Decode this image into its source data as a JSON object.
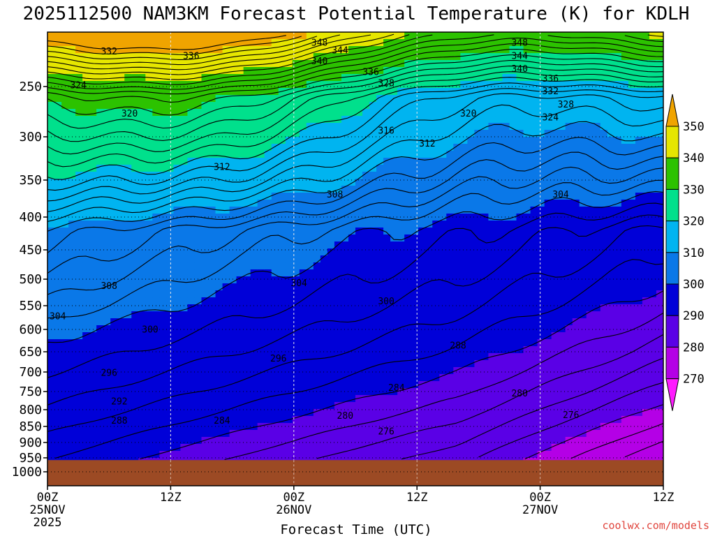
{
  "chart_data": {
    "type": "heatmap",
    "title": "2025112500 NAM3KM Forecast Potential Temperature (K) for KDLH",
    "xlabel": "Forecast Time (UTC)",
    "ylabel": "",
    "x_ticks": [
      {
        "label": "00Z",
        "sub1": "25NOV",
        "sub2": "2025",
        "hour": 0
      },
      {
        "label": "12Z",
        "sub1": "",
        "sub2": "",
        "hour": 12
      },
      {
        "label": "00Z",
        "sub1": "26NOV",
        "sub2": "",
        "hour": 24
      },
      {
        "label": "12Z",
        "sub1": "",
        "sub2": "",
        "hour": 36
      },
      {
        "label": "00Z",
        "sub1": "27NOV",
        "sub2": "",
        "hour": 48
      },
      {
        "label": "12Z",
        "sub1": "",
        "sub2": "",
        "hour": 60
      }
    ],
    "xlim_hours": [
      0,
      60
    ],
    "y_ticks": [
      250,
      300,
      350,
      400,
      450,
      500,
      550,
      600,
      650,
      700,
      750,
      800,
      850,
      900,
      950,
      1000
    ],
    "ylim_hpa": [
      200,
      1050
    ],
    "surface_pressure_hpa": 958,
    "colorbar": {
      "labels": [
        "350",
        "340",
        "330",
        "320",
        "310",
        "300",
        "290",
        "280",
        "270"
      ],
      "bins": [
        {
          "from": 340,
          "to": 350,
          "color": "#e6e600"
        },
        {
          "from": 330,
          "to": 340,
          "color": "#2cc200"
        },
        {
          "from": 320,
          "to": 330,
          "color": "#00e08c"
        },
        {
          "from": 310,
          "to": 320,
          "color": "#00b4f0"
        },
        {
          "from": 300,
          "to": 310,
          "color": "#0a78e8"
        },
        {
          "from": 290,
          "to": 300,
          "color": "#0000d8"
        },
        {
          "from": 280,
          "to": 290,
          "color": "#5a00e6"
        },
        {
          "from": 270,
          "to": 280,
          "color": "#b400e6"
        }
      ],
      "over_color": "#f0a400",
      "under_color": "#ff1aff"
    },
    "contour_interval_K": 2,
    "contour_labels": [
      {
        "text": "348",
        "hour": 26.5,
        "p": 210
      },
      {
        "text": "344",
        "hour": 28.5,
        "p": 217
      },
      {
        "text": "340",
        "hour": 26.5,
        "p": 227
      },
      {
        "text": "336",
        "hour": 31.5,
        "p": 237
      },
      {
        "text": "332",
        "hour": 6,
        "p": 218
      },
      {
        "text": "336",
        "hour": 14,
        "p": 222
      },
      {
        "text": "324",
        "hour": 3,
        "p": 249
      },
      {
        "text": "328",
        "hour": 33,
        "p": 247
      },
      {
        "text": "320",
        "hour": 8,
        "p": 277
      },
      {
        "text": "316",
        "hour": 33,
        "p": 294
      },
      {
        "text": "312",
        "hour": 37,
        "p": 308
      },
      {
        "text": "320",
        "hour": 41,
        "p": 277
      },
      {
        "text": "312",
        "hour": 17,
        "p": 335
      },
      {
        "text": "308",
        "hour": 28,
        "p": 370
      },
      {
        "text": "304",
        "hour": 50,
        "p": 370
      },
      {
        "text": "348",
        "hour": 46,
        "p": 210
      },
      {
        "text": "344",
        "hour": 46,
        "p": 222
      },
      {
        "text": "340",
        "hour": 46,
        "p": 234
      },
      {
        "text": "336",
        "hour": 49,
        "p": 243
      },
      {
        "text": "332",
        "hour": 49,
        "p": 255
      },
      {
        "text": "328",
        "hour": 50.5,
        "p": 268
      },
      {
        "text": "324",
        "hour": 49,
        "p": 281
      },
      {
        "text": "308",
        "hour": 6,
        "p": 513
      },
      {
        "text": "304",
        "hour": 24.5,
        "p": 508
      },
      {
        "text": "304",
        "hour": 1,
        "p": 573
      },
      {
        "text": "300",
        "hour": 33,
        "p": 542
      },
      {
        "text": "300",
        "hour": 10,
        "p": 601
      },
      {
        "text": "296",
        "hour": 22.5,
        "p": 667
      },
      {
        "text": "288",
        "hour": 40,
        "p": 637
      },
      {
        "text": "296",
        "hour": 6,
        "p": 703
      },
      {
        "text": "292",
        "hour": 7,
        "p": 778
      },
      {
        "text": "284",
        "hour": 34,
        "p": 741
      },
      {
        "text": "280",
        "hour": 46,
        "p": 756
      },
      {
        "text": "288",
        "hour": 7,
        "p": 833
      },
      {
        "text": "284",
        "hour": 17,
        "p": 833
      },
      {
        "text": "280",
        "hour": 29,
        "p": 819
      },
      {
        "text": "276",
        "hour": 51,
        "p": 817
      },
      {
        "text": "276",
        "hour": 33,
        "p": 866
      }
    ]
  },
  "credit": "coolwx.com/models"
}
